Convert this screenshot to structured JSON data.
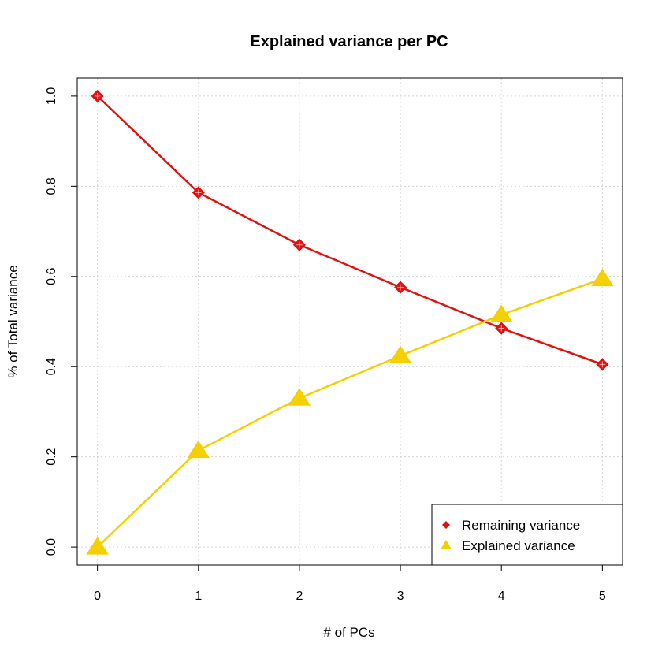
{
  "chart_data": {
    "type": "line",
    "title": "Explained variance per PC",
    "xlabel": "# of PCs",
    "ylabel": "% of Total variance",
    "x": [
      0,
      1,
      2,
      3,
      4,
      5
    ],
    "xlim": [
      -0.2,
      5.2
    ],
    "ylim": [
      -0.04,
      1.04
    ],
    "xticks": [
      "0",
      "1",
      "2",
      "3",
      "4",
      "5"
    ],
    "yticks": [
      "0.0",
      "0.2",
      "0.4",
      "0.6",
      "0.8",
      "1.0"
    ],
    "grid": true,
    "legend_position": "bottom-right",
    "series": [
      {
        "name": "Remaining variance",
        "color": "#e41010",
        "marker": "diamond",
        "values": [
          1.0,
          0.786,
          0.67,
          0.576,
          0.485,
          0.405
        ]
      },
      {
        "name": "Explained variance",
        "color": "#f5d000",
        "marker": "triangle",
        "values": [
          0.0,
          0.214,
          0.33,
          0.424,
          0.515,
          0.595
        ]
      }
    ]
  }
}
